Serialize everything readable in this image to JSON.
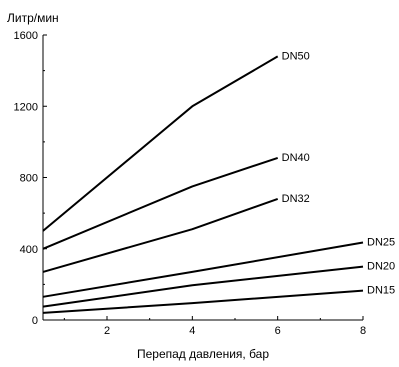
{
  "chart_data": {
    "type": "line",
    "ylabel": "Литр/мин",
    "xlabel": "Перепад давления, бар",
    "xlim": [
      0.5,
      8
    ],
    "ylim": [
      0,
      1600
    ],
    "xticks": [
      2,
      4,
      6,
      8
    ],
    "yticks": [
      0,
      400,
      800,
      1200,
      1600
    ],
    "grid": false,
    "series": [
      {
        "name": "DN50",
        "x": [
          0.5,
          4,
          6
        ],
        "y": [
          500,
          1200,
          1480
        ]
      },
      {
        "name": "DN40",
        "x": [
          0.5,
          4,
          6
        ],
        "y": [
          400,
          750,
          910
        ]
      },
      {
        "name": "DN32",
        "x": [
          0.5,
          4,
          6
        ],
        "y": [
          270,
          510,
          680
        ]
      },
      {
        "name": "DN25",
        "x": [
          0.5,
          4,
          8
        ],
        "y": [
          130,
          270,
          435
        ]
      },
      {
        "name": "DN20",
        "x": [
          0.5,
          4,
          8
        ],
        "y": [
          75,
          195,
          300
        ]
      },
      {
        "name": "DN15",
        "x": [
          0.5,
          4,
          8
        ],
        "y": [
          40,
          95,
          165
        ]
      }
    ]
  }
}
